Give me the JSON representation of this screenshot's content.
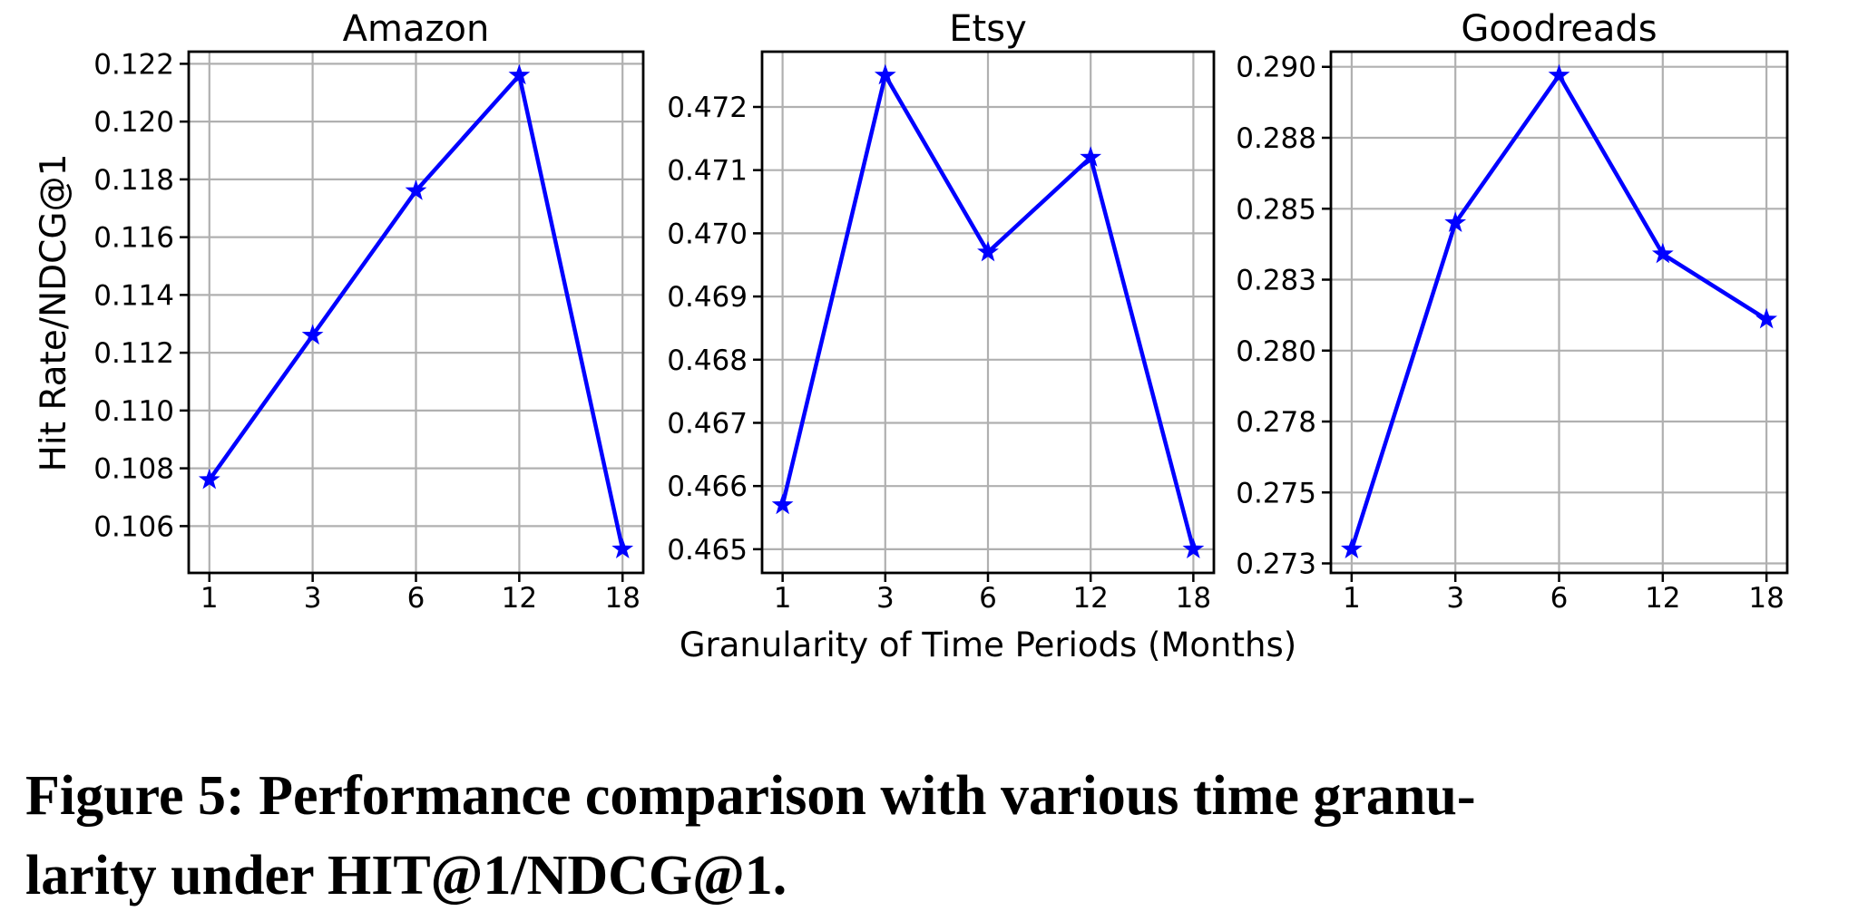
{
  "figure": {
    "ylabel": "Hit Rate/NDCG@1",
    "xlabel": "Granularity of Time Periods (Months)",
    "caption": {
      "line1": "Figure 5: Performance comparison with various time granu-",
      "line2": "larity under HIT@1/NDCG@1."
    },
    "text_color": "#000000",
    "grid_color": "#b0b0b0",
    "axis_color": "#000000"
  },
  "chart_data": [
    {
      "type": "line",
      "title": "Amazon",
      "categories": [
        1,
        3,
        6,
        12,
        18
      ],
      "x_tick_labels": [
        "1",
        "3",
        "6",
        "12",
        "18"
      ],
      "values": [
        0.1076,
        0.1126,
        0.1176,
        0.1216,
        0.1052
      ],
      "yticks": [
        {
          "value": 0.106,
          "label": "0.106"
        },
        {
          "value": 0.108,
          "label": "0.108"
        },
        {
          "value": 0.11,
          "label": "0.110"
        },
        {
          "value": 0.112,
          "label": "0.112"
        },
        {
          "value": 0.114,
          "label": "0.114"
        },
        {
          "value": 0.116,
          "label": "0.116"
        },
        {
          "value": 0.118,
          "label": "0.118"
        },
        {
          "value": 0.12,
          "label": "0.120"
        },
        {
          "value": 0.122,
          "label": "0.122"
        }
      ],
      "ylim": [
        0.10438,
        0.12242
      ],
      "xlim": [
        -0.2,
        4.2
      ],
      "line_color": "#0000ff",
      "marker": "star",
      "grid": true,
      "legend": "none"
    },
    {
      "type": "line",
      "title": "Etsy",
      "categories": [
        1,
        3,
        6,
        12,
        18
      ],
      "x_tick_labels": [
        "1",
        "3",
        "6",
        "12",
        "18"
      ],
      "values": [
        0.4657,
        0.4725,
        0.4697,
        0.4712,
        0.465
      ],
      "yticks": [
        {
          "value": 0.465,
          "label": "0.465"
        },
        {
          "value": 0.466,
          "label": "0.466"
        },
        {
          "value": 0.467,
          "label": "0.467"
        },
        {
          "value": 0.468,
          "label": "0.468"
        },
        {
          "value": 0.469,
          "label": "0.469"
        },
        {
          "value": 0.47,
          "label": "0.470"
        },
        {
          "value": 0.471,
          "label": "0.471"
        },
        {
          "value": 0.472,
          "label": "0.472"
        }
      ],
      "ylim": [
        0.464625,
        0.472875
      ],
      "xlim": [
        -0.2,
        4.2
      ],
      "line_color": "#0000ff",
      "marker": "star",
      "grid": true,
      "legend": "none"
    },
    {
      "type": "line",
      "title": "Goodreads",
      "categories": [
        1,
        3,
        6,
        12,
        18
      ],
      "x_tick_labels": [
        "1",
        "3",
        "6",
        "12",
        "18"
      ],
      "values": [
        0.273,
        0.2845,
        0.2897,
        0.2834,
        0.2811
      ],
      "yticks": [
        {
          "value": 0.2725,
          "label": "0.273"
        },
        {
          "value": 0.275,
          "label": "0.275"
        },
        {
          "value": 0.2775,
          "label": "0.278"
        },
        {
          "value": 0.28,
          "label": "0.280"
        },
        {
          "value": 0.2825,
          "label": "0.283"
        },
        {
          "value": 0.285,
          "label": "0.285"
        },
        {
          "value": 0.2875,
          "label": "0.288"
        },
        {
          "value": 0.29,
          "label": "0.290"
        }
      ],
      "ylim": [
        0.272165,
        0.290535
      ],
      "xlim": [
        -0.2,
        4.2
      ],
      "line_color": "#0000ff",
      "marker": "star",
      "grid": true,
      "legend": "none"
    }
  ]
}
